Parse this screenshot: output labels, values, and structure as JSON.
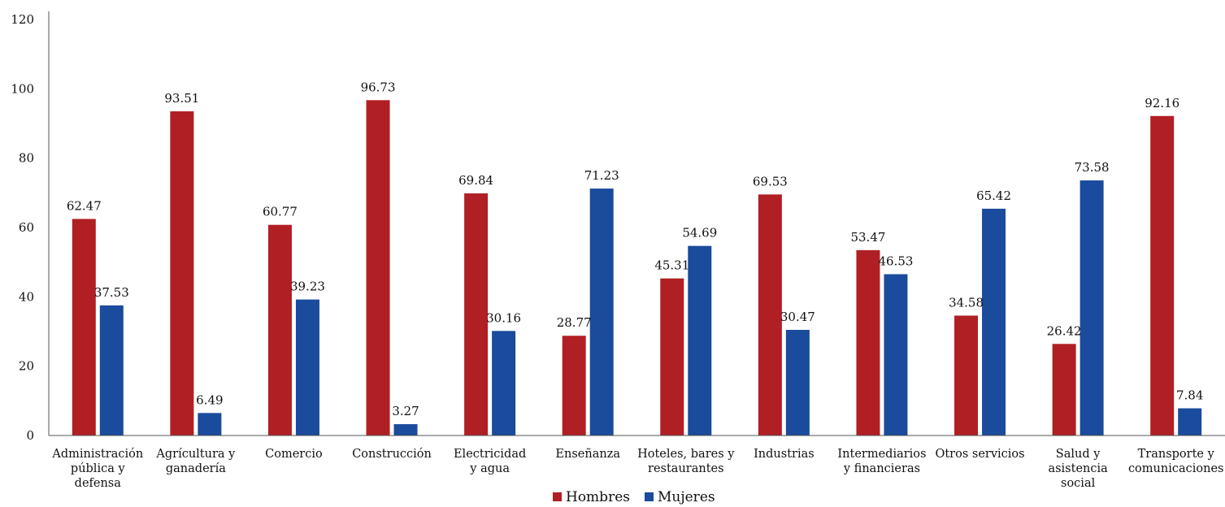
{
  "chart_data": {
    "type": "bar",
    "title": "",
    "xlabel": "",
    "ylabel": "",
    "ylim": [
      0,
      120
    ],
    "yticks": [
      0,
      20,
      40,
      60,
      80,
      100,
      120
    ],
    "grid": false,
    "legend_position": "bottom",
    "categories": [
      [
        "Administración",
        "pública y",
        "defensa"
      ],
      [
        "Agrícultura y",
        "ganadería"
      ],
      [
        "Comercio"
      ],
      [
        "Construcción"
      ],
      [
        "Electricidad",
        "y agua"
      ],
      [
        "Enseñanza"
      ],
      [
        "Hoteles, bares y",
        "restaurantes"
      ],
      [
        "Industrias"
      ],
      [
        "Intermediarios",
        "y financieras"
      ],
      [
        "Otros servicios"
      ],
      [
        "Salud y",
        "asistencia",
        "social"
      ],
      [
        "Transporte y",
        "comunicaciones"
      ]
    ],
    "series": [
      {
        "name": "Hombres",
        "color": "#b01f24",
        "values": [
          62.47,
          93.51,
          60.77,
          96.73,
          69.84,
          28.77,
          45.31,
          69.53,
          53.47,
          34.58,
          26.42,
          92.16
        ],
        "labels": [
          "62.47",
          "93.51",
          "60.77",
          "96.73",
          "69.84",
          "28.77",
          "45.31",
          "69.53",
          "53.47",
          "34.58",
          "26.42",
          "92.16"
        ]
      },
      {
        "name": "Mujeres",
        "color": "#1a4b9c",
        "values": [
          37.53,
          6.49,
          39.23,
          3.27,
          30.16,
          71.23,
          54.69,
          30.47,
          46.53,
          65.42,
          73.58,
          7.84
        ],
        "labels": [
          "37.53",
          "6.49",
          "39.23",
          "3.27",
          "30.16",
          "71.23",
          "54.69",
          "30.47",
          "46.53",
          "65.42",
          "73.58",
          "7.84"
        ]
      }
    ]
  }
}
